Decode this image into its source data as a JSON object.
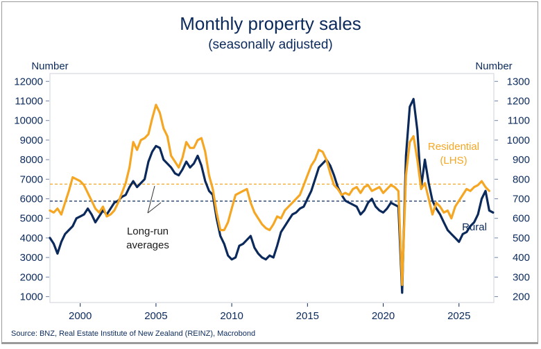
{
  "chart_data": {
    "type": "line",
    "title": "Monthly property sales",
    "subtitle": "(seasonally adjusted)",
    "ylabel_left": "Number",
    "ylabel_right": "Number",
    "xlabel": "",
    "xlim": [
      1998,
      2027.3
    ],
    "ylim_left": [
      700,
      12400
    ],
    "ylim_right": [
      170,
      1340
    ],
    "x_ticks": [
      2000,
      2005,
      2010,
      2015,
      2020,
      2025
    ],
    "x_tick_labels": [
      "2000",
      "2005",
      "2010",
      "2015",
      "2020",
      "2025"
    ],
    "y_ticks_left": [
      12000,
      11000,
      10000,
      9000,
      8000,
      7000,
      6000,
      5000,
      4000,
      3000,
      2000,
      1000
    ],
    "y_tick_labels_left": [
      "12000",
      "11000",
      "10000",
      "9000",
      "8000",
      "7000",
      "6000",
      "5000",
      "4000",
      "3000",
      "2000",
      "1000"
    ],
    "y_ticks_right": [
      1300,
      1200,
      1100,
      1000,
      900,
      800,
      700,
      600,
      500,
      400,
      300,
      200
    ],
    "y_tick_labels_right": [
      "1300",
      "1200",
      "1100",
      "1000",
      "900",
      "800",
      "700",
      "600",
      "500",
      "400",
      "300",
      "200"
    ],
    "grid": false,
    "series": [
      {
        "name": "Residential (LHS)",
        "label_lines": [
          "Residential",
          "(LHS)"
        ],
        "axis": "left",
        "color": "#f5a623",
        "long_run_average": 6750,
        "x_start": 1998.0,
        "x_step": 0.25,
        "values": [
          5400,
          5300,
          5500,
          5200,
          5800,
          6400,
          7100,
          7000,
          6900,
          6700,
          6300,
          5900,
          5500,
          5300,
          5600,
          5100,
          5200,
          5400,
          5800,
          6300,
          6800,
          7600,
          8900,
          8500,
          9000,
          9100,
          9300,
          10100,
          10800,
          10400,
          9600,
          9200,
          8200,
          7900,
          7600,
          8100,
          8900,
          8600,
          8600,
          9000,
          9100,
          8400,
          7200,
          6500,
          5300,
          4400,
          4400,
          4800,
          5500,
          6200,
          6300,
          6400,
          6500,
          5800,
          5300,
          5000,
          4700,
          4500,
          4400,
          4700,
          5100,
          5000,
          5400,
          5600,
          5800,
          6000,
          6200,
          6700,
          7200,
          7700,
          8000,
          8500,
          8400,
          8000,
          7300,
          6700,
          6500,
          6200,
          6300,
          6200,
          6500,
          6600,
          6300,
          6600,
          6700,
          6400,
          6500,
          6600,
          6300,
          6500,
          6700,
          6600,
          6400,
          1600,
          7200,
          8900,
          9200,
          8000,
          6500,
          6800,
          6000,
          5200,
          5800,
          5600,
          5300,
          5400,
          5000,
          5600,
          5900,
          6200,
          6500,
          6400,
          6600,
          6700,
          6900,
          6600,
          6400
        ]
      },
      {
        "name": "Rural (RHS)",
        "label_lines": [
          "Rural"
        ],
        "axis": "right",
        "color": "#0b2a5b",
        "long_run_average": 688,
        "x_start": 1998.0,
        "x_step": 0.25,
        "values": [
          500,
          470,
          420,
          480,
          520,
          540,
          560,
          600,
          610,
          620,
          650,
          620,
          580,
          610,
          640,
          620,
          650,
          680,
          690,
          710,
          720,
          760,
          790,
          760,
          780,
          800,
          890,
          940,
          970,
          960,
          900,
          880,
          860,
          830,
          820,
          850,
          890,
          860,
          880,
          920,
          870,
          790,
          740,
          720,
          600,
          510,
          470,
          410,
          390,
          400,
          460,
          470,
          490,
          510,
          450,
          420,
          400,
          390,
          410,
          400,
          460,
          530,
          560,
          590,
          620,
          630,
          650,
          660,
          700,
          740,
          800,
          860,
          880,
          900,
          870,
          820,
          760,
          720,
          690,
          680,
          670,
          660,
          620,
          640,
          680,
          700,
          660,
          640,
          630,
          650,
          680,
          670,
          660,
          220,
          920,
          1170,
          1210,
          1050,
          760,
          900,
          780,
          690,
          650,
          620,
          580,
          540,
          520,
          500,
          480,
          520,
          530,
          560,
          580,
          620,
          700,
          740,
          640,
          630
        ]
      }
    ],
    "annotations": [
      {
        "text_lines": [
          "Long-run",
          "averages"
        ],
        "points_to": [
          "Residential long-run average",
          "Rural long-run average"
        ]
      }
    ],
    "legend": "inline-labels-right"
  },
  "footer": {
    "source": "Source: BNZ, Real Estate Institute of New Zealand (REINZ), Macrobond"
  }
}
